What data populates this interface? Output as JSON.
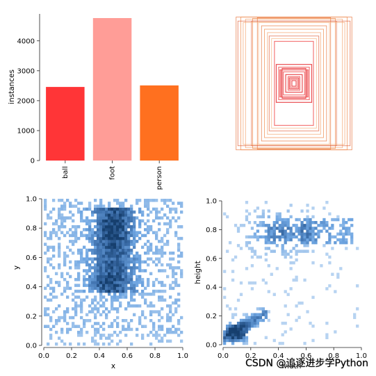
{
  "colors": {
    "ball": "#ff3537",
    "foot": "#ff9d97",
    "person": "#ff701f",
    "hist_light": "#b7d3f1",
    "hist_mid": "#6fa6e2",
    "hist_dark": "#163f6e"
  },
  "watermark": "CSDN @追逐进步学Python",
  "chart_data": [
    {
      "type": "bar",
      "categories": [
        "ball",
        "foot",
        "person"
      ],
      "values": [
        2460,
        4760,
        2510
      ],
      "ylabel": "instances",
      "yticks": [
        "0",
        "1000",
        "2000",
        "3000",
        "4000"
      ],
      "ylim": [
        0,
        4900
      ],
      "colors": [
        "#ff3537",
        "#ff9d97",
        "#ff701f"
      ]
    },
    {
      "type": "other",
      "description_kind": "label box outlines centered",
      "boxes_wh": [
        [
          0.98,
          0.98
        ],
        [
          0.9,
          0.98
        ],
        [
          0.82,
          0.95
        ],
        [
          0.72,
          0.92
        ],
        [
          0.6,
          0.9
        ],
        [
          0.55,
          0.85
        ],
        [
          0.5,
          0.8
        ],
        [
          0.45,
          0.75
        ],
        [
          0.42,
          0.7
        ],
        [
          0.38,
          0.66
        ],
        [
          0.62,
          0.97
        ],
        [
          0.7,
          0.96
        ],
        [
          0.86,
          0.9
        ],
        [
          0.95,
          0.92
        ],
        [
          0.33,
          0.62
        ],
        [
          0.3,
          0.28
        ],
        [
          0.26,
          0.24
        ],
        [
          0.22,
          0.2
        ],
        [
          0.18,
          0.17
        ],
        [
          0.14,
          0.13
        ],
        [
          0.1,
          0.1
        ],
        [
          0.08,
          0.08
        ],
        [
          0.06,
          0.06
        ],
        [
          0.2,
          0.22
        ],
        [
          0.24,
          0.2
        ]
      ]
    },
    {
      "type": "heatmap",
      "xlabel": "x",
      "ylabel": "y",
      "xlim": [
        0,
        1
      ],
      "ylim": [
        0,
        1
      ],
      "xticks": [
        "0.0",
        "0.2",
        "0.4",
        "0.6",
        "0.8",
        "1.0"
      ],
      "yticks": [
        "0.0",
        "0.2",
        "0.4",
        "0.6",
        "0.8",
        "1.0"
      ],
      "bins": 50,
      "dense_region": {
        "x": [
          0.3,
          0.7
        ],
        "y": [
          0.35,
          0.95
        ]
      },
      "peak": {
        "x": 0.5,
        "y": 0.75
      }
    },
    {
      "type": "heatmap",
      "xlabel": "width",
      "ylabel": "height",
      "xlim": [
        0,
        1
      ],
      "ylim": [
        0,
        1
      ],
      "xticks": [
        "0.0",
        "0.2",
        "0.4",
        "0.6",
        "0.8",
        "1.0"
      ],
      "yticks": [
        "0.0",
        "0.2",
        "0.4",
        "0.6",
        "0.8",
        "1.0"
      ],
      "bins": 50,
      "clusters": [
        {
          "x": 0.1,
          "y": 0.08,
          "density": "high"
        },
        {
          "x": 0.42,
          "y": 0.78,
          "density": "medium"
        }
      ]
    }
  ]
}
